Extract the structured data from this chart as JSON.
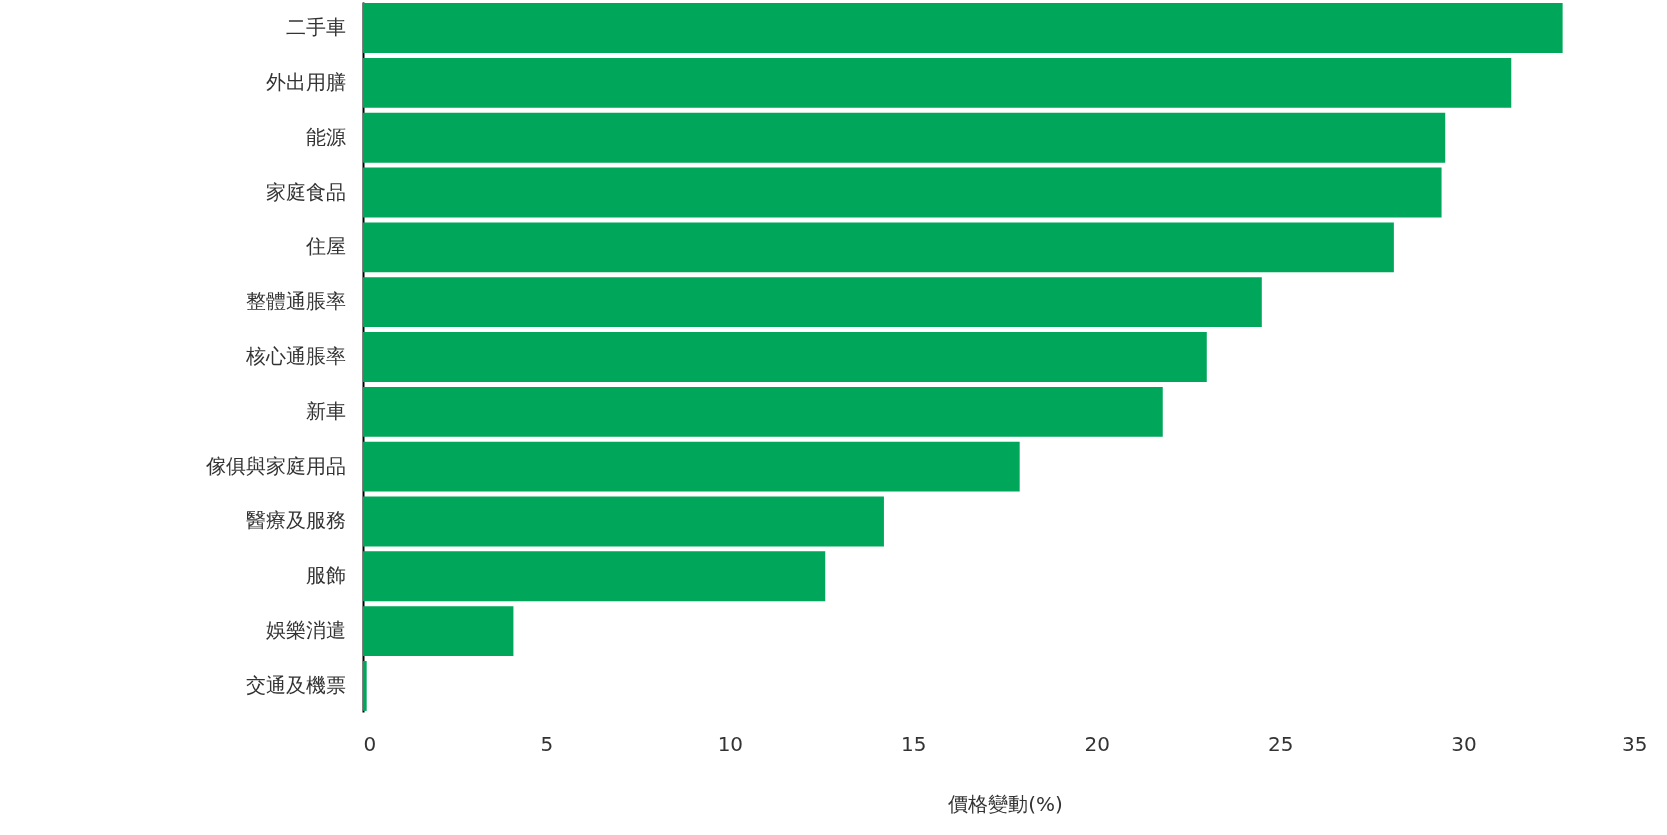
{
  "chart_data": {
    "type": "bar",
    "orientation": "horizontal",
    "xlabel": "價格變動(%)",
    "categories": [
      "二手車",
      "外出用膳",
      "能源",
      "家庭食品",
      "住屋",
      "整體通脹率",
      "核心通脹率",
      "新車",
      "傢俱與家庭用品",
      "醫療及服務",
      "服飾",
      "娛樂消遣",
      "交通及機票"
    ],
    "values": [
      32.7,
      31.3,
      29.5,
      29.4,
      28.1,
      24.5,
      23.0,
      21.8,
      17.9,
      14.2,
      12.6,
      4.1,
      0.1
    ],
    "color": "#00a65a",
    "xlim": [
      0,
      35
    ],
    "xticks": [
      0,
      5,
      10,
      15,
      20,
      25,
      30,
      35
    ],
    "grid": false
  }
}
